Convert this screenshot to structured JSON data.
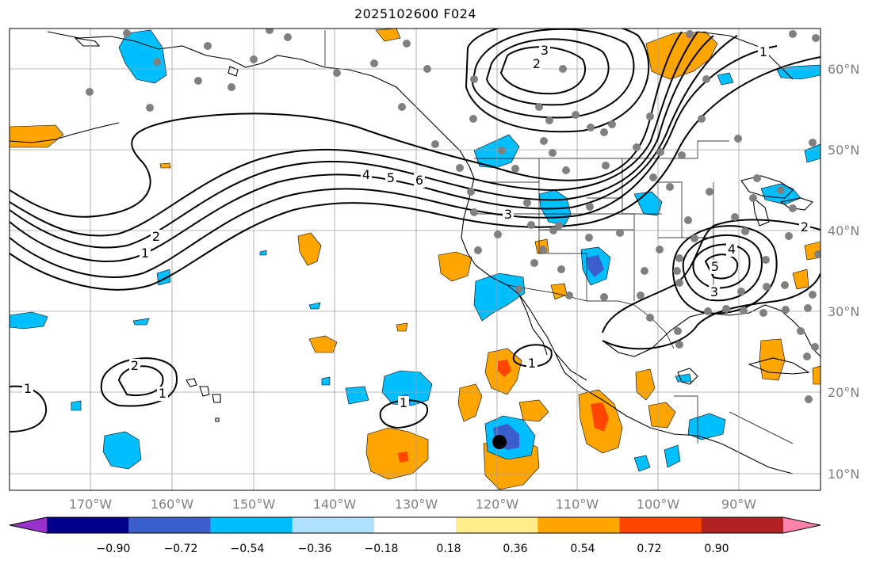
{
  "title": "2025102600 F024",
  "map": {
    "lon_range": [
      -180,
      -80
    ],
    "lat_range": [
      8,
      65
    ],
    "lon_ticks": [
      {
        "value": -170,
        "label": "170°W"
      },
      {
        "value": -160,
        "label": "160°W"
      },
      {
        "value": -150,
        "label": "150°W"
      },
      {
        "value": -140,
        "label": "140°W"
      },
      {
        "value": -130,
        "label": "130°W"
      },
      {
        "value": -120,
        "label": "120°W"
      },
      {
        "value": -110,
        "label": "110°W"
      },
      {
        "value": -100,
        "label": "100°W"
      },
      {
        "value": -90,
        "label": "90°W"
      }
    ],
    "lat_ticks": [
      {
        "value": 60,
        "label": "60°N"
      },
      {
        "value": 50,
        "label": "50°N"
      },
      {
        "value": 40,
        "label": "40°N"
      },
      {
        "value": 30,
        "label": "30°N"
      },
      {
        "value": 20,
        "label": "20°N"
      },
      {
        "value": 10,
        "label": "10°N"
      }
    ],
    "contour_labels": [
      "1",
      "2",
      "3",
      "4",
      "5",
      "6"
    ]
  },
  "colorbar": {
    "colors": [
      "#9932cc",
      "#00008b",
      "#3a5fcd",
      "#00bfff",
      "#b0e2ff",
      "#ffffff",
      "#ffec8b",
      "#ffa500",
      "#ff4500",
      "#b22222",
      "#ff82ab"
    ],
    "tick_labels": [
      "−0.90",
      "−0.72",
      "−0.54",
      "−0.36",
      "−0.18",
      "0.18",
      "0.36",
      "0.54",
      "0.72",
      "0.90"
    ]
  }
}
